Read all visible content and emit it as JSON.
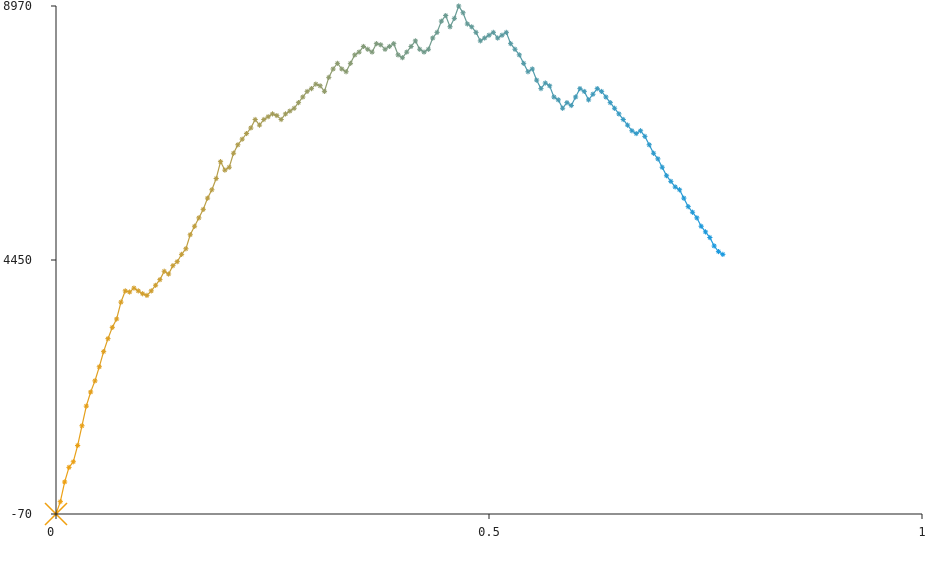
{
  "chart_data": {
    "type": "line",
    "title": "",
    "xlabel": "",
    "ylabel": "",
    "xlim": [
      0,
      1
    ],
    "ylim": [
      -70,
      8970
    ],
    "x_ticks": [
      {
        "value": 0,
        "label": "0"
      },
      {
        "value": 0.5,
        "label": "0.5"
      },
      {
        "value": 1,
        "label": "1"
      }
    ],
    "y_ticks": [
      {
        "value": -70,
        "label": "-70"
      },
      {
        "value": 4450,
        "label": "4450"
      },
      {
        "value": 8970,
        "label": "8970"
      }
    ],
    "grid": false,
    "legend": false,
    "colors": {
      "start": "#f0a010",
      "mid": "#7a9a80",
      "end": "#1a9ae0",
      "axis": "#222222"
    },
    "marker": "star",
    "series": [
      {
        "name": "",
        "points": [
          [
            0.0,
            -70
          ],
          [
            0.005,
            150
          ],
          [
            0.01,
            500
          ],
          [
            0.015,
            760
          ],
          [
            0.02,
            860
          ],
          [
            0.025,
            1150
          ],
          [
            0.03,
            1500
          ],
          [
            0.035,
            1850
          ],
          [
            0.04,
            2100
          ],
          [
            0.045,
            2300
          ],
          [
            0.05,
            2550
          ],
          [
            0.055,
            2820
          ],
          [
            0.06,
            3050
          ],
          [
            0.065,
            3250
          ],
          [
            0.07,
            3400
          ],
          [
            0.075,
            3700
          ],
          [
            0.08,
            3900
          ],
          [
            0.085,
            3880
          ],
          [
            0.09,
            3950
          ],
          [
            0.095,
            3900
          ],
          [
            0.1,
            3850
          ],
          [
            0.105,
            3820
          ],
          [
            0.11,
            3900
          ],
          [
            0.115,
            4000
          ],
          [
            0.12,
            4100
          ],
          [
            0.125,
            4250
          ],
          [
            0.13,
            4200
          ],
          [
            0.135,
            4350
          ],
          [
            0.14,
            4420
          ],
          [
            0.145,
            4550
          ],
          [
            0.15,
            4650
          ],
          [
            0.155,
            4900
          ],
          [
            0.16,
            5050
          ],
          [
            0.165,
            5200
          ],
          [
            0.17,
            5350
          ],
          [
            0.175,
            5550
          ],
          [
            0.18,
            5700
          ],
          [
            0.185,
            5900
          ],
          [
            0.19,
            6200
          ],
          [
            0.195,
            6050
          ],
          [
            0.2,
            6100
          ],
          [
            0.205,
            6350
          ],
          [
            0.21,
            6500
          ],
          [
            0.215,
            6600
          ],
          [
            0.22,
            6700
          ],
          [
            0.225,
            6800
          ],
          [
            0.23,
            6950
          ],
          [
            0.235,
            6850
          ],
          [
            0.24,
            6950
          ],
          [
            0.245,
            7000
          ],
          [
            0.25,
            7050
          ],
          [
            0.255,
            7020
          ],
          [
            0.26,
            6950
          ],
          [
            0.265,
            7050
          ],
          [
            0.27,
            7100
          ],
          [
            0.275,
            7150
          ],
          [
            0.28,
            7250
          ],
          [
            0.285,
            7350
          ],
          [
            0.29,
            7450
          ],
          [
            0.295,
            7500
          ],
          [
            0.3,
            7580
          ],
          [
            0.305,
            7550
          ],
          [
            0.31,
            7450
          ],
          [
            0.315,
            7700
          ],
          [
            0.32,
            7850
          ],
          [
            0.325,
            7950
          ],
          [
            0.33,
            7850
          ],
          [
            0.335,
            7800
          ],
          [
            0.34,
            7950
          ],
          [
            0.345,
            8100
          ],
          [
            0.35,
            8150
          ],
          [
            0.355,
            8250
          ],
          [
            0.36,
            8200
          ],
          [
            0.365,
            8150
          ],
          [
            0.37,
            8300
          ],
          [
            0.375,
            8280
          ],
          [
            0.38,
            8200
          ],
          [
            0.385,
            8250
          ],
          [
            0.39,
            8300
          ],
          [
            0.395,
            8100
          ],
          [
            0.4,
            8050
          ],
          [
            0.405,
            8150
          ],
          [
            0.41,
            8250
          ],
          [
            0.415,
            8350
          ],
          [
            0.42,
            8200
          ],
          [
            0.425,
            8150
          ],
          [
            0.43,
            8200
          ],
          [
            0.435,
            8400
          ],
          [
            0.44,
            8500
          ],
          [
            0.445,
            8700
          ],
          [
            0.45,
            8800
          ],
          [
            0.455,
            8600
          ],
          [
            0.46,
            8750
          ],
          [
            0.465,
            8970
          ],
          [
            0.47,
            8850
          ],
          [
            0.475,
            8650
          ],
          [
            0.48,
            8600
          ],
          [
            0.485,
            8500
          ],
          [
            0.49,
            8350
          ],
          [
            0.495,
            8400
          ],
          [
            0.5,
            8450
          ],
          [
            0.505,
            8500
          ],
          [
            0.51,
            8400
          ],
          [
            0.515,
            8450
          ],
          [
            0.52,
            8500
          ],
          [
            0.525,
            8300
          ],
          [
            0.53,
            8200
          ],
          [
            0.535,
            8100
          ],
          [
            0.54,
            7950
          ],
          [
            0.545,
            7800
          ],
          [
            0.55,
            7850
          ],
          [
            0.555,
            7650
          ],
          [
            0.56,
            7500
          ],
          [
            0.565,
            7600
          ],
          [
            0.57,
            7550
          ],
          [
            0.575,
            7350
          ],
          [
            0.58,
            7300
          ],
          [
            0.585,
            7150
          ],
          [
            0.59,
            7250
          ],
          [
            0.595,
            7200
          ],
          [
            0.6,
            7350
          ],
          [
            0.605,
            7500
          ],
          [
            0.61,
            7450
          ],
          [
            0.615,
            7300
          ],
          [
            0.62,
            7400
          ],
          [
            0.625,
            7500
          ],
          [
            0.63,
            7450
          ],
          [
            0.635,
            7350
          ],
          [
            0.64,
            7250
          ],
          [
            0.645,
            7150
          ],
          [
            0.65,
            7050
          ],
          [
            0.655,
            6950
          ],
          [
            0.66,
            6850
          ],
          [
            0.665,
            6750
          ],
          [
            0.67,
            6700
          ],
          [
            0.675,
            6750
          ],
          [
            0.68,
            6650
          ],
          [
            0.685,
            6500
          ],
          [
            0.69,
            6350
          ],
          [
            0.695,
            6250
          ],
          [
            0.7,
            6100
          ],
          [
            0.705,
            5950
          ],
          [
            0.71,
            5850
          ],
          [
            0.715,
            5750
          ],
          [
            0.72,
            5700
          ],
          [
            0.725,
            5550
          ],
          [
            0.73,
            5400
          ],
          [
            0.735,
            5300
          ],
          [
            0.74,
            5200
          ],
          [
            0.745,
            5050
          ],
          [
            0.75,
            4950
          ],
          [
            0.755,
            4850
          ],
          [
            0.76,
            4700
          ],
          [
            0.765,
            4600
          ],
          [
            0.77,
            4550
          ]
        ]
      }
    ]
  }
}
